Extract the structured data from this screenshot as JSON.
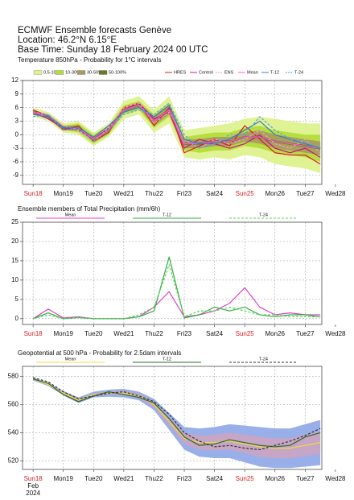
{
  "header": {
    "title": "ECMWF Ensemble forecasts Genève",
    "location": "Location:  46.2°N 6.15°E",
    "base_time": "Base Time: Sunday 18 February 2024 00 UTC"
  },
  "chart_data": [
    {
      "type": "line",
      "title": "Temperature 850hPa - Probability for 1°C intervals",
      "xlim": [
        -0.35,
        9.55
      ],
      "ylim": [
        -11,
        12
      ],
      "yticks": [
        12,
        9,
        6,
        3,
        0,
        -3,
        -6,
        -9
      ],
      "xticks": [
        {
          "value": 0,
          "label": "Sun18"
        },
        {
          "value": 1,
          "label": "Mon19"
        },
        {
          "value": 2,
          "label": "Tue20"
        },
        {
          "value": 3,
          "label": "Wed21"
        },
        {
          "value": 4,
          "label": "Thu22"
        },
        {
          "value": 5,
          "label": "Fri23"
        },
        {
          "value": 6,
          "label": "Sat24"
        },
        {
          "value": 7,
          "label": "Sun25"
        },
        {
          "value": 8,
          "label": "Mon26"
        },
        {
          "value": 9,
          "label": "Tue27"
        },
        {
          "value": 10,
          "label": "Wed28"
        }
      ],
      "highlight_ticks": [
        0,
        7
      ],
      "highlight_color": "#d81e1e",
      "grid": true,
      "x": [
        0,
        0.5,
        1,
        1.5,
        2,
        2.5,
        3,
        3.5,
        4,
        4.5,
        5,
        5.5,
        6,
        6.5,
        7,
        7.5,
        8,
        8.5,
        9,
        9.5
      ],
      "bands": [
        {
          "name": "0.5-10%",
          "color": "#def28e",
          "low": [
            4,
            3,
            0.5,
            0,
            -2.5,
            -0.5,
            3.5,
            4.5,
            0.5,
            2.5,
            -5,
            -5.5,
            -5,
            -5.5,
            -4.5,
            -5,
            -6.5,
            -7,
            -7.5,
            -8.5
          ],
          "high": [
            6,
            5,
            2.5,
            3,
            0.5,
            2.5,
            7.5,
            8.5,
            5.5,
            8.5,
            1,
            1.5,
            2,
            2.5,
            3.5,
            4,
            3.5,
            3,
            2.5,
            2.5
          ]
        },
        {
          "name": "10-30%",
          "color": "#b4dc3c",
          "low": [
            4.5,
            3.5,
            1,
            0.5,
            -2,
            0,
            4.5,
            5.5,
            1.5,
            4,
            -3.5,
            -4,
            -3.5,
            -3.5,
            -2.5,
            -3,
            -4,
            -4.5,
            -5,
            -6
          ],
          "high": [
            5.5,
            4.5,
            2,
            2.5,
            0,
            2,
            6.5,
            7.5,
            4.5,
            7,
            -0.5,
            0,
            0.5,
            0.5,
            1.5,
            2,
            1,
            0.5,
            0,
            0
          ]
        },
        {
          "name": "30-50%",
          "color": "#a89c5c",
          "low": [
            4.5,
            3.5,
            1,
            1,
            -1.5,
            0.5,
            5,
            6,
            2,
            4.5,
            -3,
            -3,
            -2.5,
            -2.5,
            -1.5,
            -2,
            -3,
            -3.5,
            -4,
            -4.5
          ],
          "high": [
            5.5,
            4.5,
            2,
            2,
            -0.5,
            1.5,
            6,
            7,
            4,
            6.5,
            -1,
            -1,
            -0.5,
            -0.5,
            0.5,
            1,
            0,
            -0.5,
            -1,
            -1.5
          ]
        },
        {
          "name": "50-100%",
          "color": "#6a7628",
          "low": [
            4.75,
            3.75,
            1.25,
            1.25,
            -1.25,
            0.75,
            5.25,
            6.25,
            2.75,
            5.25,
            -2.25,
            -2.25,
            -1.75,
            -1.75,
            -0.75,
            -0.75,
            -1.75,
            -2.25,
            -2.75,
            -3.25
          ],
          "high": [
            5.25,
            4.25,
            1.75,
            1.75,
            -0.75,
            1.25,
            5.75,
            6.75,
            3.25,
            5.75,
            -1.75,
            -1.75,
            -1.25,
            -1.25,
            -0.25,
            -0.25,
            -1.25,
            -1.75,
            -2.25,
            -2.75
          ]
        }
      ],
      "series": [
        {
          "name": "HRES",
          "color": "#e0142a",
          "values": [
            5.5,
            4,
            1,
            2,
            -1.5,
            0.5,
            6,
            7,
            2,
            6,
            -4,
            -2.5,
            -1,
            -2.5,
            2,
            -1,
            -4,
            -4.5,
            -4.5,
            -6.5
          ]
        },
        {
          "name": "Control",
          "color": "#c8148c",
          "values": [
            5,
            3.5,
            1.5,
            1,
            -1,
            1.5,
            5.5,
            7,
            3.5,
            5,
            -3,
            -1,
            -2,
            -3,
            -2,
            0,
            -3,
            -4,
            -3,
            -5
          ]
        },
        {
          "name": "ENS",
          "color": "#f0a0c8",
          "dashed": true,
          "values": [
            5,
            4.5,
            2,
            1,
            -1.5,
            1.5,
            6,
            7,
            2.5,
            5,
            -1,
            -3,
            -1,
            -2,
            -1,
            1,
            -2,
            -3,
            -1,
            -4
          ]
        },
        {
          "name": "Mean",
          "color": "#ff5fc8",
          "values": [
            5,
            4,
            1.5,
            1.5,
            -1,
            1,
            5.5,
            6.5,
            3,
            5.5,
            -2,
            -2,
            -1.5,
            -1.5,
            -0.5,
            -0.5,
            -1.5,
            -2,
            -2.5,
            -3
          ]
        },
        {
          "name": "T-12",
          "color": "#3a78c8",
          "values": [
            4.5,
            4,
            1.5,
            1.5,
            -0.5,
            2,
            5,
            6,
            4,
            6.5,
            -1,
            -2,
            -2,
            -1,
            1,
            3,
            0,
            -1,
            -2,
            -3
          ]
        },
        {
          "name": "T-24",
          "color": "#5aa0e0",
          "dashed": true,
          "values": [
            4,
            4.5,
            1,
            1.5,
            -1.5,
            1,
            4.5,
            5.5,
            4.5,
            7,
            0,
            -3,
            -2,
            0,
            0,
            4,
            1,
            -1,
            -1.5,
            -3
          ]
        }
      ]
    },
    {
      "type": "line",
      "title": "Ensemble members of Total Precipitation (mm/6h)",
      "xlim": [
        -0.35,
        9.55
      ],
      "ylim": [
        -1.5,
        25
      ],
      "yticks": [
        25,
        20,
        15,
        10,
        5,
        0
      ],
      "xticks": [
        {
          "value": 0,
          "label": "Sun18"
        },
        {
          "value": 1,
          "label": "Mon19"
        },
        {
          "value": 2,
          "label": "Tue20"
        },
        {
          "value": 3,
          "label": "Wed21"
        },
        {
          "value": 4,
          "label": "Thu22"
        },
        {
          "value": 5,
          "label": "Fri23"
        },
        {
          "value": 6,
          "label": "Sat24"
        },
        {
          "value": 7,
          "label": "Sun25"
        },
        {
          "value": 8,
          "label": "Mon26"
        },
        {
          "value": 9,
          "label": "Tue27"
        },
        {
          "value": 10,
          "label": "Wed28"
        }
      ],
      "highlight_ticks": [
        0,
        7
      ],
      "highlight_color": "#d81e1e",
      "grid": true,
      "x": [
        0,
        0.5,
        1,
        1.5,
        2,
        2.5,
        3,
        3.5,
        4,
        4.5,
        5,
        5.5,
        6,
        6.5,
        7,
        7.5,
        8,
        8.5,
        9,
        9.5
      ],
      "series": [
        {
          "name": "Mean",
          "color": "#e040c8",
          "values": [
            0,
            2.5,
            0.2,
            0.5,
            0,
            0,
            0,
            0.5,
            3,
            7,
            0.5,
            1,
            2,
            4,
            8,
            3,
            1,
            1.5,
            1,
            1
          ]
        },
        {
          "name": "T-12",
          "color": "#30b040",
          "values": [
            0,
            1.5,
            0,
            0.3,
            0,
            0,
            0,
            0.5,
            2,
            16,
            0.2,
            1,
            3,
            2,
            3,
            1,
            0.5,
            1,
            1,
            0.5
          ]
        },
        {
          "name": "T-24",
          "color": "#60d060",
          "dashed": true,
          "values": [
            0,
            1,
            0,
            0.3,
            0,
            0,
            0,
            1,
            3,
            14,
            0.5,
            2,
            2,
            3,
            2,
            1,
            1,
            0.5,
            0.5,
            0.5
          ]
        }
      ]
    },
    {
      "type": "line",
      "title": "Geopotential at 500 hPa - Probability for 2.5dam intervals",
      "xlim": [
        -0.35,
        9.55
      ],
      "ylim": [
        514,
        587
      ],
      "yticks": [
        580,
        560,
        540,
        520
      ],
      "xticks": [
        {
          "value": 0,
          "label": "Sun18"
        },
        {
          "value": 1,
          "label": "Mon19"
        },
        {
          "value": 2,
          "label": "Tue20"
        },
        {
          "value": 3,
          "label": "Wed21"
        },
        {
          "value": 4,
          "label": "Thu22"
        },
        {
          "value": 5,
          "label": "Fri23"
        },
        {
          "value": 6,
          "label": "Sat24"
        },
        {
          "value": 7,
          "label": "Sun25"
        },
        {
          "value": 8,
          "label": "Mon26"
        },
        {
          "value": 9,
          "label": "Tue27"
        },
        {
          "value": 10,
          "label": "Wed28"
        }
      ],
      "highlight_ticks": [
        0,
        7
      ],
      "highlight_color": "#d81e1e",
      "grid": true,
      "month": "Feb",
      "year": "2024",
      "x": [
        0,
        0.5,
        1,
        1.5,
        2,
        2.5,
        3,
        3.5,
        4,
        4.5,
        5,
        5.5,
        6,
        6.5,
        7,
        7.5,
        8,
        8.5,
        9,
        9.5
      ],
      "bands": [
        {
          "color": "#94abe8",
          "low": [
            577,
            573,
            566.5,
            561,
            565,
            565.5,
            565,
            563,
            556,
            542,
            528,
            523,
            522,
            522,
            519,
            516,
            515,
            515,
            516,
            517
          ],
          "high": [
            579,
            575,
            569.5,
            565,
            569,
            570.5,
            571,
            569,
            564,
            554,
            544,
            543,
            544,
            546,
            545,
            544,
            543,
            543,
            546,
            549
          ]
        },
        {
          "color": "#c8a4c4",
          "low": [
            577.5,
            573.5,
            567,
            562,
            566,
            567,
            566.5,
            564.5,
            558,
            545,
            532,
            528,
            527.5,
            528,
            525.5,
            523,
            522,
            522,
            523.5,
            525
          ],
          "high": [
            578.5,
            574.5,
            569,
            564,
            568,
            569,
            569.5,
            567.5,
            562,
            551,
            540,
            538,
            538.5,
            540,
            538.5,
            537,
            536,
            536,
            538.5,
            541
          ]
        }
      ],
      "series": [
        {
          "name": "Mean",
          "color": "#f0dc3c",
          "values": [
            578,
            574,
            568,
            563,
            567,
            568,
            568,
            566,
            560,
            548,
            536,
            533,
            533,
            534,
            532,
            530,
            529,
            529,
            531,
            533
          ]
        },
        {
          "name": "T-12",
          "color": "#2a6a2a",
          "values": [
            578,
            575,
            567,
            562,
            566,
            569,
            567,
            565,
            561,
            550,
            537,
            531,
            532,
            535,
            533,
            531,
            530,
            531,
            537,
            540
          ]
        },
        {
          "name": "T-24",
          "color": "#333333",
          "dashed": true,
          "values": [
            579,
            576,
            569,
            564,
            566,
            568,
            569,
            566,
            562,
            553,
            540,
            534,
            530,
            531,
            529,
            528,
            531,
            534,
            538,
            543
          ]
        }
      ]
    }
  ]
}
